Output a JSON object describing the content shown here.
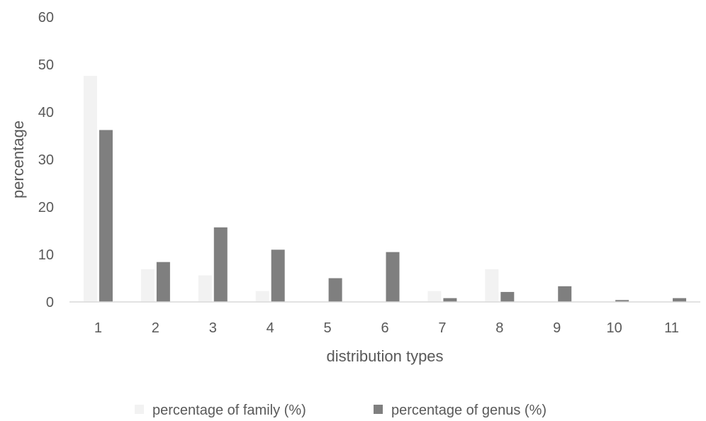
{
  "chart_data": {
    "type": "bar",
    "xlabel": "distribution types",
    "ylabel": "percentage",
    "ylim": [
      0,
      60
    ],
    "yticks": [
      0,
      10,
      20,
      30,
      40,
      50,
      60
    ],
    "grid": false,
    "legend_position": "bottom",
    "categories": [
      "1",
      "2",
      "3",
      "4",
      "5",
      "6",
      "7",
      "8",
      "9",
      "10",
      "11"
    ],
    "series": [
      {
        "name": "percentage of family (%)",
        "color": "#f2f2f2",
        "values": [
          47.6,
          6.9,
          5.6,
          2.3,
          0,
          0,
          2.3,
          6.9,
          0,
          0,
          0
        ]
      },
      {
        "name": "percentage of genus (%)",
        "color": "#7f7f7f",
        "values": [
          36.2,
          8.4,
          15.7,
          11.0,
          5.0,
          10.5,
          0.8,
          2.1,
          3.3,
          0.4,
          0.8
        ]
      }
    ]
  }
}
